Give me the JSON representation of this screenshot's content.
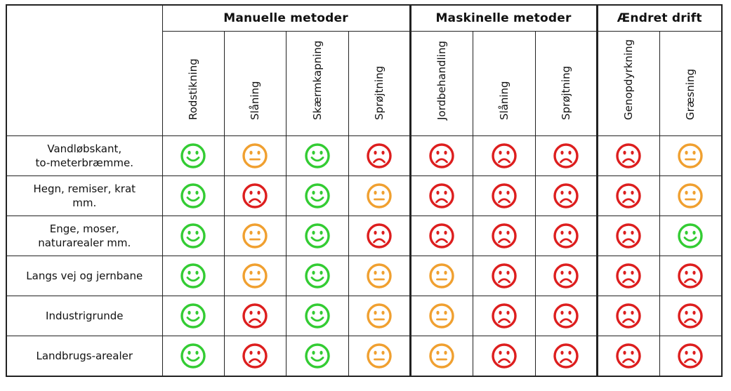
{
  "colors": {
    "happy": "#33cc33",
    "neutral": "#f0a030",
    "sad": "#dd1e1e"
  },
  "groups": [
    {
      "label": "Manuelle metoder"
    },
    {
      "label": "Maskinelle metoder"
    },
    {
      "label": "Ændret drift"
    }
  ],
  "methods": [
    "Rodstikning",
    "Slåning",
    "Skærmkapning",
    "Sprøjtning",
    "Jordbehandling",
    "Slåning",
    "Sprøjtning",
    "Genopdyrkning",
    "Græsning"
  ],
  "rows": [
    {
      "label_lines": [
        "Vandløbskant,",
        "to-meterbræmme."
      ],
      "ratings": [
        "happy",
        "neutral",
        "happy",
        "sad",
        "sad",
        "sad",
        "sad",
        "sad",
        "neutral"
      ]
    },
    {
      "label_lines": [
        "Hegn, remiser, krat",
        "mm."
      ],
      "ratings": [
        "happy",
        "sad",
        "happy",
        "neutral",
        "sad",
        "sad",
        "sad",
        "sad",
        "neutral"
      ]
    },
    {
      "label_lines": [
        "Enge, moser,",
        "naturarealer mm."
      ],
      "ratings": [
        "happy",
        "neutral",
        "happy",
        "sad",
        "sad",
        "sad",
        "sad",
        "sad",
        "happy"
      ]
    },
    {
      "label_lines": [
        "Langs vej og jernbane"
      ],
      "ratings": [
        "happy",
        "neutral",
        "happy",
        "neutral",
        "neutral",
        "sad",
        "sad",
        "sad",
        "sad"
      ]
    },
    {
      "label_lines": [
        "Industrigrunde"
      ],
      "ratings": [
        "happy",
        "sad",
        "happy",
        "neutral",
        "neutral",
        "sad",
        "sad",
        "sad",
        "sad"
      ]
    },
    {
      "label_lines": [
        "Landbrugs-arealer"
      ],
      "ratings": [
        "happy",
        "sad",
        "happy",
        "neutral",
        "neutral",
        "sad",
        "sad",
        "sad",
        "sad"
      ]
    }
  ]
}
